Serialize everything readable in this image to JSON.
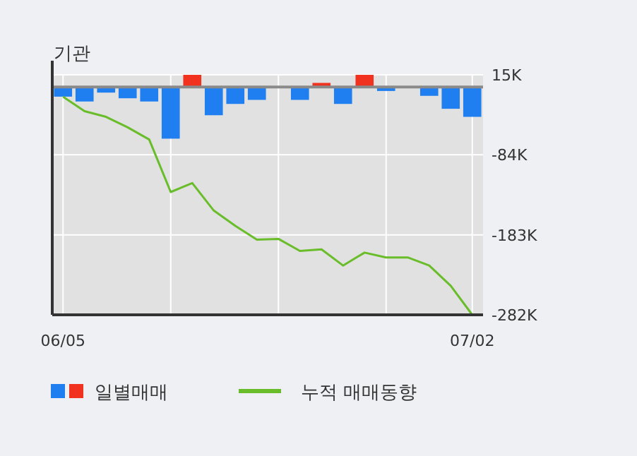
{
  "chart_data": {
    "type": "bar",
    "title": "기관",
    "categories": [
      "06/05",
      null,
      null,
      null,
      null,
      null,
      null,
      null,
      null,
      null,
      null,
      null,
      null,
      null,
      null,
      null,
      null,
      null,
      null,
      "07/02"
    ],
    "series": [
      {
        "name": "일별매매",
        "colors": [
          "#1f7ff0",
          "#1f7ff0",
          "#1f7ff0",
          "#1f7ff0",
          "#1f7ff0",
          "#1f7ff0",
          "#f0321e",
          "#1f7ff0",
          "#1f7ff0",
          "#1f7ff0",
          "#1f7ff0",
          "#1f7ff0",
          "#f0321e",
          "#1f7ff0",
          "#f0321e",
          "#1f7ff0",
          "#1f7ff0",
          "#1f7ff0",
          "#1f7ff0",
          "#1f7ff0"
        ],
        "values": [
          -12,
          -18,
          -7,
          -14,
          -18,
          -64,
          15,
          -35,
          -21,
          -16,
          0,
          -16,
          5,
          -21,
          15,
          -5,
          0,
          -11,
          -27,
          -37
        ]
      },
      {
        "name": "누적 매매동향",
        "type": "line",
        "color": "#6abd2a",
        "values": [
          -12,
          -30,
          -37,
          -50,
          -65,
          -130,
          -119,
          -153,
          -172,
          -189,
          -188,
          -203,
          -201,
          -221,
          -205,
          -211,
          -211,
          -221,
          -246,
          -282
        ]
      }
    ],
    "ylim": [
      -282,
      15
    ],
    "yticks": [
      {
        "value": 15,
        "label": "15K"
      },
      {
        "value": -84,
        "label": "-84K"
      },
      {
        "value": -183,
        "label": "-183K"
      },
      {
        "value": -282,
        "label": "-282K"
      }
    ],
    "grid": true,
    "legend": "bottom"
  }
}
